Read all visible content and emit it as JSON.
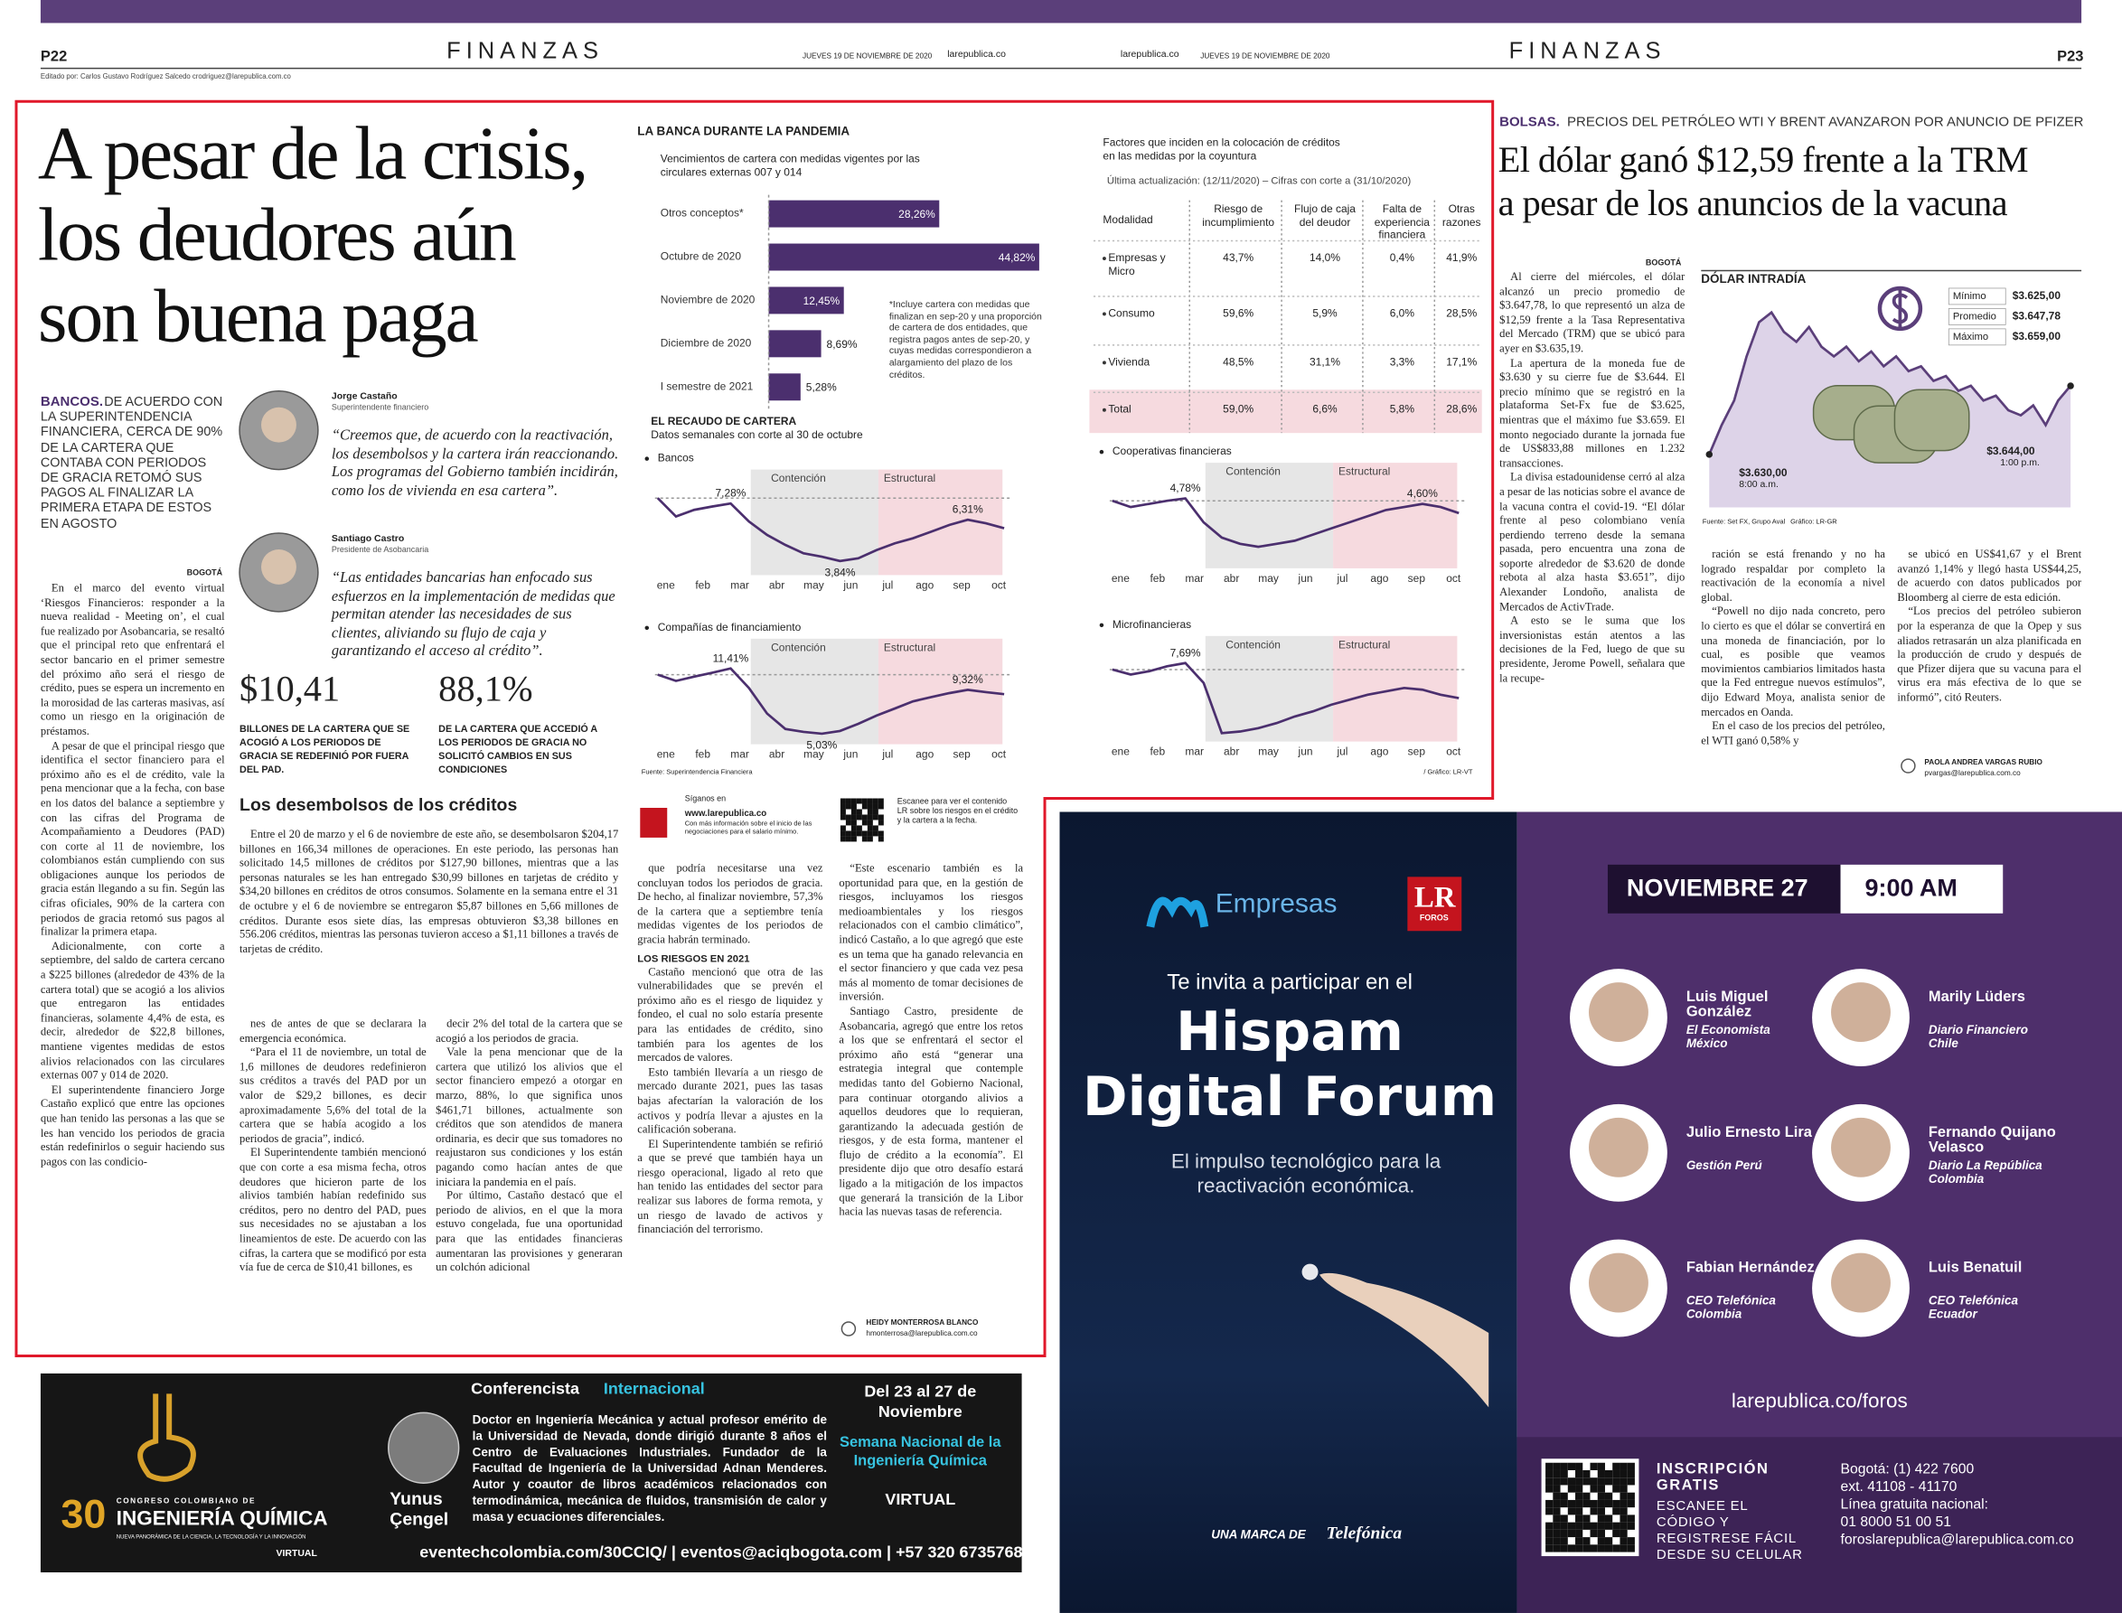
{
  "header": {
    "page_left": "P22",
    "section_left": "FINANZAS",
    "date_left": "JUEVES 19 DE NOVIEMBRE DE 2020",
    "site_left": "larepublica.co",
    "editor": "Editado por: Carlos Gustavo Rodríguez Salcedo crodriguez@larepublica.com.co",
    "site_right": "larepublica.co",
    "date_right": "JUEVES 19 DE NOVIEMBRE DE 2020",
    "section_right": "FINANZAS",
    "page_right": "P23"
  },
  "main": {
    "headline": [
      "A pesar de la crisis,",
      "los deudores aún",
      "son buena paga"
    ],
    "kicker": "BANCOS.",
    "summary": "DE ACUERDO CON LA SUPERINTENDENCIA FINANCIERA, CERCA DE 90% DE LA CARTERA QUE CONTABA CON PERIODOS DE GRACIA RETOMÓ SUS PAGOS AL FINALIZAR LA PRIMERA ETAPA DE ESTOS EN AGOSTO",
    "quotes": [
      {
        "name": "Jorge Castaño",
        "role": "Superintendente financiero",
        "text": "“Creemos que, de acuerdo con la reactivación, los desembolsos y la cartera irán reaccionando. Los programas del Gobierno también incidirán, como los de vivienda en esa cartera”."
      },
      {
        "name": "Santiago Castro",
        "role": "Presidente de Asobancaria",
        "text": "“Las entidades bancarias han enfocado sus esfuerzos en la implementación de medidas que permitan atender las necesidades de sus clientes, aliviando su flujo de caja y garantizando el acceso al crédito”."
      }
    ],
    "stats": [
      {
        "value": "$10,41",
        "text": "BILLONES DE LA CARTERA QUE SE ACOGIÓ A LOS PERIODOS DE GRACIA SE REDEFINIÓ POR FUERA DEL PAD."
      },
      {
        "value": "88,1%",
        "text": "DE LA CARTERA QUE ACCEDIÓ A LOS PERIODOS DE GRACIA NO SOLICITÓ CAMBIOS EN SUS CONDICIONES"
      }
    ],
    "location": "BOGOTÁ",
    "col1": [
      "En el marco del evento virtual ‘Riesgos Financieros: responder a la nueva realidad - Meeting on’, el cual fue realizado por Asobancaria, se resaltó que el principal reto que enfrentará el sector bancario en el primer semestre del próximo año será el riesgo de crédito, pues se espera un incremento en la morosidad de las carteras masivas, así como un riesgo en la originación de préstamos.",
      "A pesar de que el principal riesgo que identifica el sector financiero para el próximo año es el de crédito, vale la pena mencionar que a la fecha, con base en los datos del balance a septiembre y con las cifras del Programa de Acompañamiento a Deudores (PAD) con corte al 11 de noviembre, los colombianos están cumpliendo con sus obligaciones aunque los periodos de gracia están llegando a su fin. Según las cifras oficiales, 90% de la cartera con periodos de gracia retomó sus pagos al finalizar la primera etapa.",
      "Adicionalmente, con corte a septiembre, del saldo de cartera cercano a $225 billones (alrededor de 43% de la cartera total) que se acogió a los alivios que entregaron las entidades financieras, solamente 4,4% de esta, es decir, alrededor de $22,8 billones, mantiene vigentes medidas de estos alivios relacionados con las circulares externas 007 y 014 de 2020.",
      "El superintendente financiero Jorge Castaño explicó que entre las opciones que han tenido las personas a las que se les han vencido los periodos de gracia están redefinirlos o seguir haciendo sus pagos con las condicio-"
    ],
    "subhead": "Los desembolsos de los créditos",
    "desembolsos": "Entre el 20 de marzo y el 6 de noviembre de este año, se desembolsaron $204,17 billones en 166,34 millones de operaciones. En este periodo, las personas han solicitado 14,5 millones de créditos por $127,90 billones, mientras que a las personas naturales se les han entregado $30,99 billones en tarjetas de crédito y $34,20 billones en créditos de otros consumos. Solamente en la semana entre el 31 de octubre y el 6 de noviembre se entregaron $5,87 billones en 5,66 millones de créditos. Durante esos siete días, las empresas obtuvieron $3,38 billones en 556.206 créditos, mientras las personas tuvieron acceso a $1,11 billones a través de tarjetas de crédito.",
    "col2": [
      "nes de antes de que se declarara la emergencia económica.",
      "“Para el 11 de noviembre, un total de 1,6 millones de deudores redefinieron sus créditos a través del PAD por un valor de $29,2 billones, es decir aproximadamente 5,6% del total de la cartera que se había acogido a los periodos de gracia”, indicó.",
      "El Superintendente también mencionó que con corte a esa misma fecha, otros deudores que hicieron parte de los alivios también habían redefinido sus créditos, pero no dentro del PAD, pues sus necesidades no se ajustaban a los lineamientos de este. De acuerdo con las cifras, la cartera que se modificó por esta vía fue de cerca de $10,41 billones, es"
    ],
    "col3": [
      "decir 2% del total de la cartera que se acogió a los periodos de gracia.",
      "Vale la pena mencionar que de la cartera que utilizó los alivios que el sector financiero empezó a otorgar en marzo, 88%, lo que significa unos $461,71 billones, actualmente son créditos que son atendidos de manera ordinaria, es decir que sus tomadores no reajustaron sus condiciones y los están pagando como hacían antes de que iniciara la pandemia en el país.",
      "Por último, Castaño destacó que el periodo de alivios, en el que la mora estuvo congelada, fue una oportunidad para que las entidades financieras aumentaran las provisiones y generaran un colchón adicional"
    ],
    "col4": [
      "que podría necesitarse una vez concluyan todos los periodos de gracia. De hecho, al finalizar noviembre, 57,3% de la cartera que a septiembre tenía medidas vigentes de los periodos de gracia habrán terminado."
    ],
    "risk_subhead": "LOS RIESGOS EN 2021",
    "col4b": [
      "Castaño mencionó que otra de las vulnerabilidades que se prevén el próximo año es el riesgo de liquidez y fondeo, el cual no solo estaría presente para las entidades de crédito, sino también para los agentes de los mercados de valores.",
      "Esto también llevaría a un riesgo de mercado durante 2021, pues las tasas bajas afectarían la valoración de los activos y podría llevar a ajustes en la calificación soberana.",
      "El Superintendente también se refirió a que se prevé que también haya un riesgo operacional, ligado al reto que han tenido las entidades del sector para realizar sus labores de forma remota, y un riesgo de lavado de activos y financiación del terrorismo."
    ],
    "col5": [
      "“Este escenario también es la oportunidad para que, en la gestión de riesgos, incluyamos los riesgos medioambientales y los riesgos relacionados con el cambio climático”, indicó Castaño, a lo que agregó que este es un tema que ha ganado relevancia en el sector financiero y que cada vez pesa más al momento de tomar decisiones de inversión.",
      "Santiago Castro, presidente de Asobancaria, agregó que entre los retos a los que se enfrentará el sector el próximo año está “generar una estrategia integral que contemple medidas tanto del Gobierno Nacional, para continuar otorgando alivios a aquellos deudores que lo requieran, garantizando la adecuada gestión de riesgos, y de esta forma, mantener el flujo de crédito a la economía”. El presidente dijo que otro desafío estará ligado a la mitigación de los impactos que generará la transición de la Libor hacia las nuevas tasas de referencia."
    ],
    "byline": "HEIDY MONTERROSA BLANCO",
    "email": "hmonterrosa@larepublica.com.co",
    "follow": {
      "label": "Síganos en",
      "url": "www.larepublica.co",
      "desc": "Con más información sobre el inicio de las negociaciones para el salario mínimo.",
      "scan": "Escanee para ver el contenido LR sobre los riesgos en el crédito y la cartera a la fecha."
    }
  },
  "banca": {
    "type": "bar",
    "title": "LA BANCA DURANTE LA PANDEMIA",
    "subtitle": "Vencimientos de cartera con medidas vigentes por las circulares externas 007 y 014",
    "categories": [
      "Otros conceptos*",
      "Octubre de 2020",
      "Noviembre de 2020",
      "Diciembre de 2020",
      "I semestre de 2021"
    ],
    "values": [
      28.26,
      44.82,
      12.45,
      8.69,
      5.28
    ],
    "value_labels": [
      "28,26%",
      "44,82%",
      "12,45%",
      "8,69%",
      "5,28%"
    ],
    "xlim": [
      0,
      50
    ],
    "color": "#4b2f6e",
    "note": "*Incluye cartera con medidas que finalizan en sep-20 y una proporción de cartera de dos entidades, que registra pagos antes de sep-20, y cuyas medidas correspondieron a alargamiento del plazo de los créditos."
  },
  "recaudo": {
    "type": "line",
    "title": "EL RECAUDO DE CARTERA",
    "subtitle": "Datos semanales con corte al 30 de octubre",
    "months": [
      "ene",
      "feb",
      "mar",
      "abr",
      "may",
      "jun",
      "jul",
      "ago",
      "sep",
      "oct"
    ],
    "zones": [
      "Contención",
      "Estructural"
    ],
    "color": "#4b2f6e",
    "panels": [
      {
        "name": "Bancos",
        "ylim": [
          3,
          8.5
        ],
        "values": [
          7.6,
          6.5,
          6.9,
          7.1,
          7.28,
          6.2,
          5.4,
          4.8,
          4.3,
          4.1,
          3.84,
          4.0,
          4.5,
          4.9,
          5.2,
          5.6,
          6.0,
          6.31,
          6.1,
          5.8
        ],
        "value_labels": [
          null,
          null,
          null,
          null,
          "7,28%",
          null,
          null,
          null,
          null,
          null,
          "3,84%",
          null,
          null,
          null,
          null,
          null,
          null,
          "6,31%",
          null,
          null
        ]
      },
      {
        "name": "Compañías de financiamiento",
        "ylim": [
          4,
          13
        ],
        "values": [
          10.8,
          10.2,
          10.6,
          11.0,
          11.41,
          9.5,
          7.0,
          5.5,
          5.2,
          5.03,
          5.3,
          6.0,
          6.8,
          7.5,
          8.2,
          8.6,
          9.0,
          9.32,
          9.1,
          8.9
        ],
        "value_labels": [
          null,
          null,
          null,
          null,
          "11,41%",
          null,
          null,
          null,
          null,
          "5,03%",
          null,
          null,
          null,
          null,
          null,
          null,
          null,
          "9,32%",
          null,
          null
        ]
      },
      {
        "name": "Cooperativas financieras",
        "ylim": [
          2.5,
          5.5
        ],
        "values": [
          4.7,
          4.5,
          4.6,
          4.7,
          4.78,
          4.0,
          3.5,
          3.3,
          3.2,
          3.3,
          3.4,
          3.6,
          3.8,
          4.0,
          4.2,
          4.4,
          4.5,
          4.6,
          4.5,
          4.3
        ],
        "value_labels": [
          null,
          null,
          null,
          null,
          "4,78%",
          null,
          null,
          null,
          null,
          null,
          null,
          null,
          null,
          null,
          null,
          null,
          null,
          "4,60%",
          null,
          null
        ]
      },
      {
        "name": "Microfinancieras",
        "ylim": [
          3,
          8.5
        ],
        "values": [
          7.3,
          7.0,
          7.2,
          7.5,
          7.69,
          6.5,
          3.5,
          3.6,
          3.8,
          4.1,
          4.5,
          4.8,
          5.2,
          5.5,
          5.8,
          6.0,
          6.2,
          6.1,
          5.8,
          5.6
        ],
        "value_labels": [
          null,
          null,
          null,
          null,
          "7,69%",
          null,
          null,
          null,
          null,
          null,
          null,
          null,
          null,
          null,
          null,
          null,
          null,
          null,
          null,
          null
        ]
      }
    ],
    "source": "Fuente: Superintendencia Financiera",
    "credit": "/ Gráfico: LR-VT"
  },
  "factores": {
    "title": "Factores que inciden en la colocación de créditos en las medidas por la coyuntura",
    "update": "Última actualización: (12/11/2020) – Cifras con corte a (31/10/2020)",
    "headers": [
      "Modalidad",
      "Riesgo de incumplimiento",
      "Flujo de caja del deudor",
      "Falta de experiencia financiera",
      "Otras razones"
    ],
    "rows": [
      [
        "Empresas y Micro",
        "43,7%",
        "14,0%",
        "0,4%",
        "41,9%"
      ],
      [
        "Consumo",
        "59,6%",
        "5,9%",
        "6,0%",
        "28,5%"
      ],
      [
        "Vivienda",
        "48,5%",
        "31,1%",
        "3,3%",
        "17,1%"
      ],
      [
        "Total",
        "59,0%",
        "6,6%",
        "5,8%",
        "28,6%"
      ]
    ]
  },
  "bolsas": {
    "kicker": "BOLSAS.",
    "kicker_text": "PRECIOS DEL PETRÓLEO WTI Y BRENT AVANZARON POR ANUNCIO DE PFIZER",
    "headline": [
      "El dólar ganó $12,59 frente a la TRM",
      "a pesar de los anuncios de la vacuna"
    ],
    "location": "BOGOTÁ",
    "col1": [
      "Al cierre del miércoles, el dólar alcanzó un precio promedio de $3.647,78, lo que representó un alza de $12,59 frente a la Tasa Representativa del Mercado (TRM) que se ubicó para ayer en $3.635,19.",
      "La apertura de la moneda fue de $3.630 y su cierre fue de $3.644. El precio mínimo que se registró en la plataforma Set-Fx fue de $3.625, mientras que el máximo fue $3.659. El monto negociado durante la jornada fue de US$833,88 millones en 1.232 transacciones.",
      "La divisa estadounidense cerró al alza a pesar de las noticias sobre el avance de la vacuna contra el covid-19. “El dólar frente al peso colombiano venía perdiendo terreno desde la semana pasada, pero encuentra una zona de soporte alrededor de $3.620 de donde rebota al alza hasta $3.651”, dijo Alexander Londoño, analista de Mercados de ActivTrade.",
      "A esto se le suma que los inversionistas están atentos a las decisiones de la Fed, luego de que su presidente, Jerome Powell, señalara que la recupe-"
    ],
    "col2": [
      "ración se está frenando y no ha logrado respaldar por completo la reactivación de la economía a nivel global.",
      "“Powell no dijo nada concreto, pero lo cierto es que el dólar se convertirá en una moneda de financiación, por lo cual, es posible que veamos movimientos cambiarios limitados hasta que la Fed entregue nuevos estímulos”, dijo Edward Moya, analista senior de mercados en Oanda.",
      "En el caso de los precios del petróleo, el WTI ganó 0,58% y"
    ],
    "col3": [
      "se ubicó en US$41,67 y el Brent avanzó 1,14% y llegó hasta US$44,25, de acuerdo con datos publicados por Bloomberg al cierre de esta edición.",
      "“Los precios del petróleo subieron por la esperanza de que la Opep y sus aliados retrasarán un alza planificada en la producción de crudo y después de que Pfizer dijera que su vacuna para el virus era más efectiva de lo que se informó”, citó Reuters."
    ],
    "byline": "PAOLA ANDREA VARGAS RUBIO",
    "email": "pvargas@larepublica.com.co"
  },
  "dolar": {
    "type": "area",
    "title": "DÓLAR INTRADÍA",
    "ylim": [
      3620,
      3662
    ],
    "color": "#5b3f7a",
    "values": [
      3630,
      3636,
      3641,
      3650,
      3657,
      3659,
      3655,
      3653,
      3656,
      3652,
      3650,
      3652,
      3649,
      3651,
      3648,
      3650,
      3647,
      3648,
      3645,
      3646,
      3643,
      3644,
      3641,
      3642,
      3639,
      3638,
      3640,
      3636,
      3641,
      3644
    ],
    "stats": [
      {
        "label": "Mínimo",
        "value": "$3.625,00"
      },
      {
        "label": "Promedio",
        "value": "$3.647,78"
      },
      {
        "label": "Máximo",
        "value": "$3.659,00"
      }
    ],
    "open": {
      "value": "$3.630,00",
      "time": "8:00 a.m."
    },
    "close": {
      "value": "$3.644,00",
      "time": "1:00 p.m."
    },
    "source": "Fuente: Set FX, Grupo Aval",
    "credit": "Gráfico: LR-GR"
  },
  "congreso_ad": {
    "number": "30",
    "line1": "CONGRESO COLOMBIANO DE",
    "line2": "INGENIERÍA QUÍMICA",
    "line3": "NUEVA PANORÁMICA DE LA CIENCIA, LA TECNOLOGÍA Y LA INNOVACIÓN",
    "virtual_logo": "VIRTUAL",
    "heading": "Conferencista",
    "heading2": "Internacional",
    "bio": "Doctor en Ingeniería Mecánica y actual profesor emérito de la Universidad de Nevada, donde dirigió durante 8 años el Centro de Evaluaciones Industriales. Fundador de la Facultad de Ingeniería de la Universidad Adnan Menderes. Autor y coautor de libros académicos relacionados con termodinámica, mecánica de fluidos, transmisión de calor y masa y ecuaciones diferenciales.",
    "speaker": [
      "Yunus",
      "Çengel"
    ],
    "dates": "Del 23 al 27 de Noviembre",
    "event": "Semana Nacional de la Ingeniería Química",
    "mode": "VIRTUAL",
    "footer": "eventechcolombia.com/30CCIQ/ | eventos@aciqbogota.com | +57 320 6735768"
  },
  "foro_ad": {
    "brand": "Empresas",
    "lr": "LR",
    "foros": "FOROS",
    "invite": "Te invita a participar en el",
    "title": [
      "Hispam",
      "Digital Forum"
    ],
    "subtitle": "El impulso tecnológico para la reactivación económica.",
    "marca": "UNA MARCA DE",
    "telefonica": "Telefónica",
    "date": "NOVIEMBRE 27",
    "time": "9:00 AM",
    "speakers": [
      {
        "name": "Luis Miguel González",
        "org": "El Economista México"
      },
      {
        "name": "Marily Lüders",
        "org": "Diario Financiero Chile"
      },
      {
        "name": "Julio Ernesto Lira",
        "org": "Gestión Perú"
      },
      {
        "name": "Fernando Quijano Velasco",
        "org": "Diario La República Colombia"
      },
      {
        "name": "Fabian Hernández",
        "org": "CEO Telefónica Colombia"
      },
      {
        "name": "Luis Benatuil",
        "org": "CEO Telefónica Ecuador"
      }
    ],
    "url": "larepublica.co/foros",
    "signup": "INSCRIPCIÓN GRATIS",
    "signup_desc": "ESCANEE EL CÓDIGO Y REGISTRESE FÁCIL DESDE SU CELULAR",
    "contact": [
      "Bogotá: (1) 422 7600",
      "ext. 41108 - 41170",
      "Línea gratuita nacional:",
      "01 8000 51 00 51",
      "foroslarepublica@larepublica.com.co"
    ]
  }
}
